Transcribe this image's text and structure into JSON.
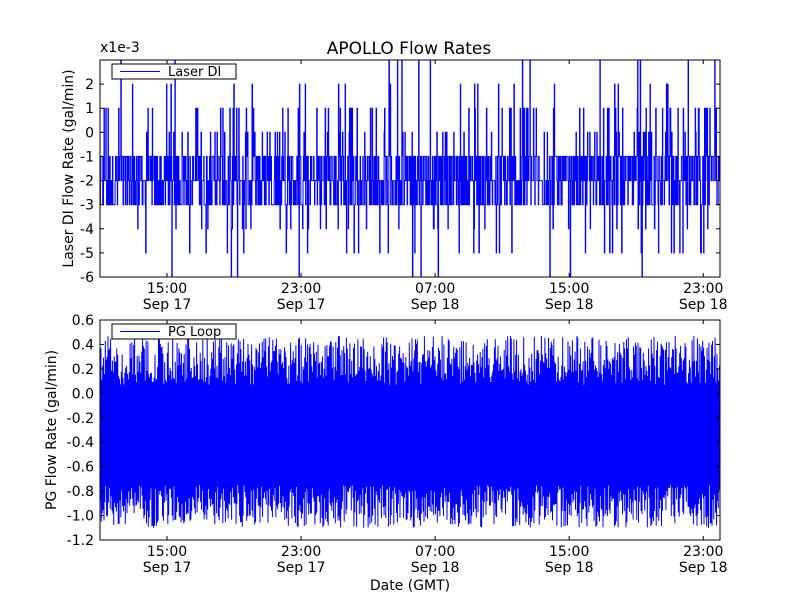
{
  "title": "APOLLO Flow Rates",
  "chart_data": [
    {
      "type": "line",
      "ylabel": "Laser DI Flow Rate (gal/min)",
      "y_offset_label": "x1e-3",
      "ylim": [
        -6,
        3
      ],
      "yticks": [
        "-6",
        "-5",
        "-4",
        "-3",
        "-2",
        "-1",
        "0",
        "1",
        "2"
      ],
      "xlim": [
        "2011-09-17 11:00",
        "2011-09-19 00:00"
      ],
      "xticks": [
        {
          "time": "15:00",
          "date": "Sep 17"
        },
        {
          "time": "23:00",
          "date": "Sep 17"
        },
        {
          "time": "07:00",
          "date": "Sep 18"
        },
        {
          "time": "15:00",
          "date": "Sep 18"
        },
        {
          "time": "23:00",
          "date": "Sep 18"
        }
      ],
      "legend": {
        "placement": "top-left"
      },
      "series": [
        {
          "name": "Laser DI",
          "color": "#0000ff",
          "sampling": "noise band, quantized to 1e-3 steps",
          "levels": [
            -6,
            -5,
            -4,
            -3,
            -2,
            -1,
            0,
            1,
            2,
            3
          ],
          "typical_band": [
            -3,
            -1
          ]
        }
      ]
    },
    {
      "type": "line",
      "ylabel": "PG Flow Rate (gal/min)",
      "xlabel": "Date (GMT)",
      "ylim": [
        -1.2,
        0.6
      ],
      "yticks": [
        "-1.2",
        "-1.0",
        "-0.8",
        "-0.6",
        "-0.4",
        "-0.2",
        "0.0",
        "0.2",
        "0.4",
        "0.6"
      ],
      "xlim": [
        "2011-09-17 11:00",
        "2011-09-19 00:00"
      ],
      "xticks": [
        {
          "time": "15:00",
          "date": "Sep 17"
        },
        {
          "time": "23:00",
          "date": "Sep 17"
        },
        {
          "time": "07:00",
          "date": "Sep 18"
        },
        {
          "time": "15:00",
          "date": "Sep 18"
        },
        {
          "time": "23:00",
          "date": "Sep 18"
        }
      ],
      "legend": {
        "placement": "top-left"
      },
      "series": [
        {
          "name": "PG Loop",
          "color": "#0000ff",
          "sampling": "dense oscillation",
          "range": [
            -1.1,
            0.47
          ]
        }
      ]
    }
  ]
}
